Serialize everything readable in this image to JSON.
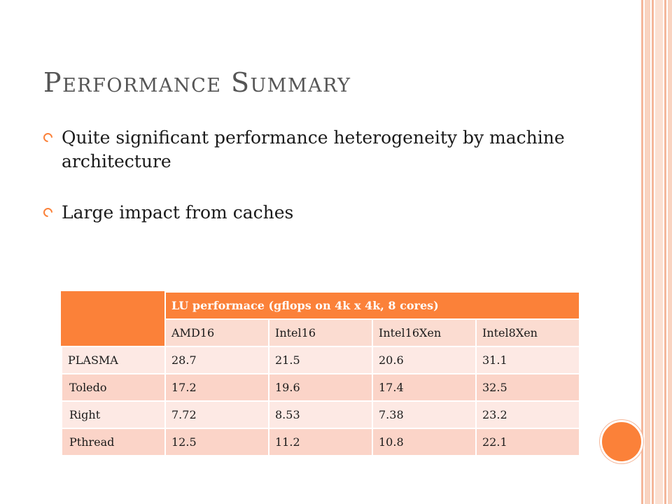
{
  "slide": {
    "title": "Performance Summary",
    "bullets": [
      "Quite significant performance heterogeneity by machine architecture",
      "Large impact from caches"
    ]
  },
  "table": {
    "caption": "LU performace (gflops on 4k x 4k, 8 cores)",
    "columns": [
      "AMD16",
      "Intel16",
      "Intel16Xen",
      "Intel8Xen"
    ],
    "rows": [
      {
        "label": "PLASMA",
        "values": [
          "28.7",
          "21.5",
          "20.6",
          "31.1"
        ]
      },
      {
        "label": "Toledo",
        "values": [
          "17.2",
          "19.6",
          "17.4",
          "32.5"
        ]
      },
      {
        "label": "Right",
        "values": [
          "7.72",
          "8.53",
          "7.38",
          "23.2"
        ]
      },
      {
        "label": "Pthread",
        "values": [
          "12.5",
          "11.2",
          "10.8",
          "22.1"
        ]
      }
    ]
  },
  "colors": {
    "accent": "#fb8139",
    "stripe": "#f4b79b",
    "row_light": "#fde9e4",
    "row_dark": "#fbd4c8"
  }
}
